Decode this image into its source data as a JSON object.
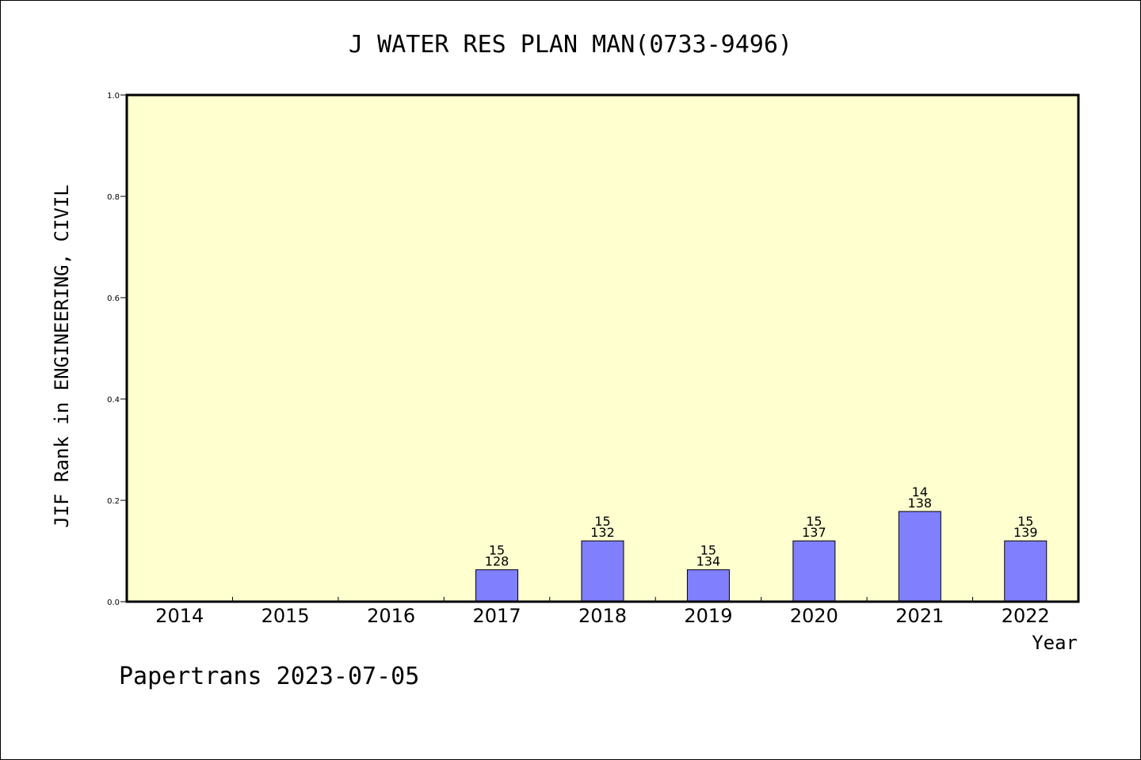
{
  "chart_data": {
    "type": "bar",
    "title": "J WATER RES PLAN MAN(0733-9496)",
    "xlabel": "Year",
    "ylabel": "JIF Rank in ENGINEERING, CIVIL",
    "categories": [
      "2014",
      "2015",
      "2016",
      "2017",
      "2018",
      "2019",
      "2020",
      "2021",
      "2022"
    ],
    "values": [
      null,
      null,
      null,
      0.063,
      0.12,
      0.063,
      0.12,
      0.178,
      0.12
    ],
    "labels_top": [
      "",
      "",
      "",
      "15",
      "15",
      "15",
      "15",
      "14",
      "15"
    ],
    "labels_bottom": [
      "",
      "",
      "",
      "128",
      "132",
      "134",
      "137",
      "138",
      "139"
    ],
    "ylim": [
      0,
      1.0
    ],
    "yticks": [
      "0.0",
      "0.2",
      "0.4",
      "0.6",
      "0.8",
      "1.0"
    ],
    "ytick_values": [
      0,
      0.2,
      0.4,
      0.6,
      0.8,
      1.0
    ],
    "grid": false,
    "colors": {
      "plot_background": "#ffffd0",
      "bar": "#8080ff",
      "axis": "#000000"
    }
  },
  "footer": "Papertrans 2023-07-05"
}
